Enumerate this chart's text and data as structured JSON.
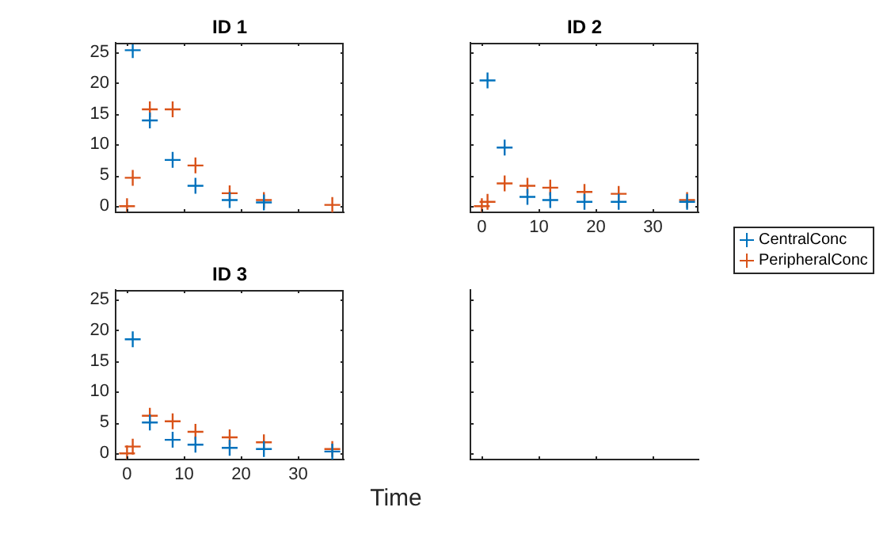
{
  "chart_data": [
    {
      "type": "scatter",
      "title": "ID 1",
      "x": [
        0,
        1,
        4,
        8,
        12,
        18,
        24,
        36
      ],
      "xlim": [
        -2,
        38
      ],
      "xticks": [
        0,
        10,
        20,
        30
      ],
      "ylim": [
        -1,
        26.5
      ],
      "yticks": [
        0,
        5,
        10,
        15,
        20,
        25
      ],
      "tick_labels": "y",
      "marker": "cross",
      "grid": false,
      "series": [
        {
          "color": "#0072bd",
          "values": [
            null,
            25.3,
            13.9,
            7.5,
            3.3,
            1.0,
            0.6,
            null
          ]
        },
        {
          "color": "#d95319",
          "values": [
            0,
            4.6,
            15.7,
            15.7,
            6.6,
            2.1,
            1.0,
            0.2
          ]
        }
      ]
    },
    {
      "type": "scatter",
      "title": "ID 2",
      "x": [
        0,
        1,
        4,
        8,
        12,
        18,
        24,
        36
      ],
      "xlim": [
        -2,
        38
      ],
      "xticks": [
        0,
        10,
        20,
        30
      ],
      "ylim": [
        -1,
        26.5
      ],
      "yticks": [
        0,
        5,
        10,
        15,
        20,
        25
      ],
      "tick_labels": "x",
      "marker": "cross",
      "grid": false,
      "legend": "right",
      "series": [
        {
          "name": "CentralConc",
          "color": "#0072bd",
          "values": [
            null,
            20.4,
            9.5,
            1.5,
            1.0,
            0.7,
            0.7,
            0.7
          ]
        },
        {
          "name": "PeripheralConc",
          "color": "#d95319",
          "values": [
            0,
            0.7,
            3.7,
            3.3,
            3.0,
            2.3,
            2.0,
            1.0
          ]
        }
      ]
    },
    {
      "type": "scatter",
      "title": "ID 3",
      "xlabel": "Time",
      "x": [
        0,
        1,
        4,
        8,
        12,
        18,
        24,
        36
      ],
      "xlim": [
        -2,
        38
      ],
      "xticks": [
        0,
        10,
        20,
        30
      ],
      "ylim": [
        -1,
        26.5
      ],
      "yticks": [
        0,
        5,
        10,
        15,
        20,
        25
      ],
      "marker": "cross",
      "grid": false,
      "series": [
        {
          "color": "#0072bd",
          "values": [
            null,
            18.5,
            5.0,
            2.2,
            1.4,
            0.9,
            0.7,
            0.3
          ]
        },
        {
          "color": "#d95319",
          "values": [
            0,
            1.1,
            6.1,
            5.2,
            3.5,
            2.6,
            1.8,
            0.7
          ]
        }
      ]
    },
    {
      "type": "scatter",
      "xlim": [
        -2,
        38
      ],
      "xticks": [
        0,
        10,
        20,
        30
      ],
      "ylim": [
        -1,
        26.5
      ],
      "yticks": [
        0,
        5,
        10,
        15,
        20,
        25
      ],
      "tick_labels": false,
      "grid": false
    }
  ]
}
